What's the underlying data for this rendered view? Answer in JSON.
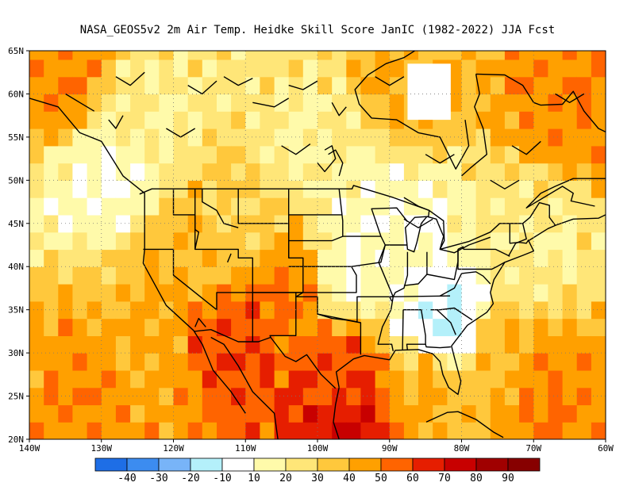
{
  "chart_data": {
    "type": "heatmap",
    "title": "NASA_GEOS5v2  2m Air Temp. Heidke Skill Score JanIC (1982-2022) JJA Fcst",
    "xlim": [
      -140,
      -60
    ],
    "ylim": [
      20,
      65
    ],
    "x_tick_labels": [
      "140W",
      "130W",
      "120W",
      "110W",
      "100W",
      "90W",
      "80W",
      "70W",
      "60W"
    ],
    "y_tick_labels": [
      "20N",
      "25N",
      "30N",
      "35N",
      "40N",
      "45N",
      "50N",
      "55N",
      "60N",
      "65N"
    ],
    "grid": true,
    "colorbar": {
      "levels": [
        "-40",
        "-30",
        "-20",
        "-10",
        "10",
        "20",
        "30",
        "40",
        "50",
        "60",
        "70",
        "80",
        "90"
      ],
      "colors": [
        "#1e6ee6",
        "#3c8cf0",
        "#78b4f8",
        "#b4f0fa",
        "#ffffff",
        "#fffaaa",
        "#ffe678",
        "#ffc83c",
        "#ffa000",
        "#ff6400",
        "#e61e00",
        "#c80000",
        "#a00000",
        "#870000"
      ]
    },
    "field_samples": [
      {
        "lon": -135,
        "lat": 62,
        "value": 50
      },
      {
        "lon": -125,
        "lat": 58,
        "value": 20
      },
      {
        "lon": -130,
        "lat": 50,
        "value": 10
      },
      {
        "lon": -118,
        "lat": 40,
        "value": 40
      },
      {
        "lon": -112,
        "lat": 32,
        "value": 60
      },
      {
        "lon": -105,
        "lat": 38,
        "value": 50
      },
      {
        "lon": -110,
        "lat": 45,
        "value": 30
      },
      {
        "lon": -95,
        "lat": 40,
        "value": 10
      },
      {
        "lon": -90,
        "lat": 45,
        "value": 10
      },
      {
        "lon": -82,
        "lat": 33,
        "value": -10
      },
      {
        "lon": -97,
        "lat": 27,
        "value": 60
      },
      {
        "lon": -96,
        "lat": 22,
        "value": 70
      },
      {
        "lon": -85,
        "lat": 26,
        "value": 40
      },
      {
        "lon": -75,
        "lat": 30,
        "value": 40
      },
      {
        "lon": -68,
        "lat": 26,
        "value": 50
      },
      {
        "lon": -65,
        "lat": 60,
        "value": 50
      },
      {
        "lon": -88,
        "lat": 62,
        "value": 40
      },
      {
        "lon": -100,
        "lat": 55,
        "value": 20
      },
      {
        "lon": -125,
        "lat": 30,
        "value": 40
      },
      {
        "lon": -130,
        "lat": 25,
        "value": 50
      },
      {
        "lon": -70,
        "lat": 42,
        "value": 20
      }
    ]
  }
}
